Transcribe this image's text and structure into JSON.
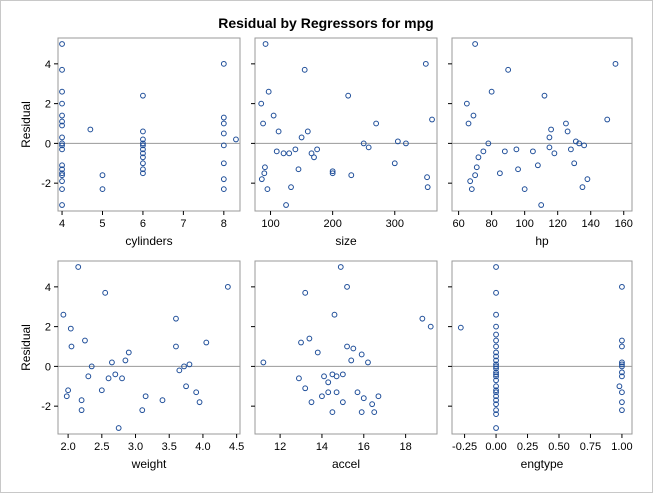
{
  "title": "Residual by Regressors for mpg",
  "colors": {
    "marker": "#1f4e99",
    "panel_border": "#9a9a9a",
    "zero_line": "#9a9a9a",
    "text": "#000000",
    "outer_border": "#c8c8c8"
  },
  "chart_data": [
    {
      "type": "scatter",
      "xlabel": "cylinders",
      "ylabel": "Residual",
      "xlim": [
        3.9,
        8.4
      ],
      "ylim": [
        -3.4,
        5.3
      ],
      "xticks": [
        4,
        5,
        6,
        7,
        8
      ],
      "xtick_labels": [
        "4",
        "5",
        "6",
        "7",
        "8"
      ],
      "yticks": [
        -2,
        0,
        2,
        4
      ],
      "ytick_labels": [
        "-2",
        "0",
        "2",
        "4"
      ],
      "reference_line_y": 0,
      "x": [
        4,
        4,
        4,
        4,
        4,
        4,
        4,
        4,
        4,
        4,
        4,
        4,
        4,
        4,
        4,
        4,
        4,
        4,
        4.7,
        5,
        5,
        6,
        6,
        6,
        6,
        6,
        6,
        6,
        6,
        6,
        6,
        6,
        8,
        8,
        8,
        8,
        8,
        8,
        8,
        8,
        8.3
      ],
      "y": [
        5.0,
        3.7,
        2.6,
        2.0,
        1.4,
        0.9,
        0.3,
        0.0,
        -0.1,
        -0.3,
        -1.1,
        -1.3,
        -1.5,
        -1.9,
        -2.3,
        -3.1,
        -1.6,
        1.1,
        0.7,
        -1.6,
        -2.3,
        2.4,
        0.6,
        0.2,
        -0.1,
        -0.3,
        -0.5,
        -0.7,
        -1.0,
        -1.3,
        -1.5,
        0.0,
        4.0,
        1.3,
        1.0,
        -0.1,
        -1.0,
        -1.8,
        -2.3,
        0.5,
        0.2
      ]
    },
    {
      "type": "scatter",
      "xlabel": "size",
      "ylabel": "",
      "xlim": [
        75,
        368
      ],
      "ylim": [
        -3.4,
        5.3
      ],
      "xticks": [
        100,
        200,
        300
      ],
      "xtick_labels": [
        "100",
        "200",
        "300"
      ],
      "yticks": [
        -2,
        0,
        2,
        4
      ],
      "ytick_labels": [],
      "reference_line_y": 0,
      "x": [
        92,
        85,
        88,
        91,
        97,
        90,
        86,
        95,
        105,
        110,
        113,
        121,
        125,
        130,
        133,
        140,
        145,
        150,
        155,
        160,
        166,
        170,
        175,
        200,
        200,
        225,
        230,
        250,
        258,
        270,
        300,
        305,
        318,
        350,
        352,
        353,
        360
      ],
      "y": [
        5.0,
        2.0,
        1.0,
        -1.2,
        2.6,
        -1.5,
        -1.8,
        -2.3,
        1.4,
        -0.4,
        0.6,
        -0.5,
        -3.1,
        -0.5,
        -2.2,
        -0.3,
        -1.3,
        0.3,
        3.7,
        0.6,
        -0.5,
        -0.7,
        -0.3,
        -1.4,
        -1.5,
        2.4,
        -1.6,
        0.0,
        -0.2,
        1.0,
        -1.0,
        0.1,
        0.0,
        4.0,
        -1.7,
        -2.2,
        1.2
      ]
    },
    {
      "type": "scatter",
      "xlabel": "hp",
      "ylabel": "",
      "xlim": [
        56,
        165
      ],
      "ylim": [
        -3.4,
        5.3
      ],
      "xticks": [
        60,
        80,
        100,
        120,
        140,
        160
      ],
      "xtick_labels": [
        "60",
        "80",
        "100",
        "120",
        "140",
        "160"
      ],
      "yticks": [
        -2,
        0,
        2,
        4
      ],
      "ytick_labels": [],
      "reference_line_y": 0,
      "x": [
        65,
        66,
        67,
        68,
        69,
        70,
        70,
        71,
        72,
        75,
        78,
        80,
        85,
        88,
        90,
        95,
        96,
        100,
        105,
        108,
        110,
        112,
        115,
        115,
        116,
        118,
        125,
        126,
        128,
        130,
        131,
        133,
        135,
        136,
        138,
        150,
        155
      ],
      "y": [
        2.0,
        1.0,
        -1.9,
        -2.3,
        1.4,
        -1.6,
        5.0,
        -1.2,
        -0.7,
        -0.4,
        0.0,
        2.6,
        -1.5,
        -0.4,
        3.7,
        -0.3,
        -1.3,
        -2.3,
        -0.4,
        -1.1,
        -3.1,
        2.4,
        -0.2,
        0.3,
        0.7,
        -0.5,
        1.0,
        0.6,
        -0.3,
        -1.0,
        0.1,
        0.0,
        -2.2,
        -0.1,
        -1.8,
        1.2,
        4.0
      ]
    },
    {
      "type": "scatter",
      "xlabel": "weight",
      "ylabel": "Residual",
      "xlim": [
        1.85,
        4.55
      ],
      "ylim": [
        -3.4,
        5.3
      ],
      "xticks": [
        2.0,
        2.5,
        3.0,
        3.5,
        4.0,
        4.5
      ],
      "xtick_labels": [
        "2.0",
        "2.5",
        "3.0",
        "3.5",
        "4.0",
        "4.5"
      ],
      "yticks": [
        -2,
        0,
        2,
        4
      ],
      "ytick_labels": [
        "-2",
        "0",
        "2",
        "4"
      ],
      "reference_line_y": 0,
      "x": [
        1.93,
        2.0,
        2.04,
        2.05,
        1.98,
        2.15,
        2.2,
        2.2,
        2.25,
        2.3,
        2.35,
        2.5,
        2.55,
        2.6,
        2.65,
        2.7,
        2.75,
        2.8,
        2.85,
        2.9,
        3.1,
        3.15,
        3.4,
        3.6,
        3.6,
        3.65,
        3.72,
        3.75,
        3.8,
        3.9,
        3.95,
        4.05,
        4.37
      ],
      "y": [
        2.6,
        -1.2,
        1.9,
        1.0,
        -1.5,
        5.0,
        -1.7,
        -2.2,
        1.3,
        -0.5,
        0.0,
        -1.2,
        3.7,
        -0.6,
        0.2,
        -0.4,
        -3.1,
        -0.6,
        0.3,
        0.7,
        -2.2,
        -1.5,
        -1.7,
        1.0,
        2.4,
        -0.2,
        0.0,
        -1.0,
        0.1,
        -1.3,
        -1.8,
        1.2,
        4.0
      ]
    },
    {
      "type": "scatter",
      "xlabel": "accel",
      "ylabel": "",
      "xlim": [
        10.8,
        19.5
      ],
      "ylim": [
        -3.4,
        5.3
      ],
      "xticks": [
        12,
        14,
        16,
        18
      ],
      "xtick_labels": [
        "12",
        "14",
        "16",
        "18"
      ],
      "yticks": [
        -2,
        0,
        2,
        4
      ],
      "ytick_labels": [],
      "reference_line_y": 0,
      "x": [
        11.2,
        12.9,
        13.0,
        13.2,
        13.2,
        13.4,
        13.5,
        13.8,
        14.0,
        14.1,
        14.3,
        14.3,
        14.5,
        14.5,
        14.6,
        14.7,
        14.7,
        14.9,
        15.0,
        15.0,
        15.2,
        15.2,
        15.4,
        15.5,
        15.7,
        15.9,
        15.9,
        16.0,
        16.2,
        16.4,
        16.5,
        16.7,
        18.8,
        19.2
      ],
      "y": [
        0.2,
        -0.6,
        1.2,
        -1.1,
        3.7,
        1.4,
        -1.8,
        0.7,
        -1.5,
        -0.5,
        -0.8,
        -1.3,
        -2.3,
        -0.4,
        2.6,
        -0.5,
        -1.3,
        5.0,
        -0.4,
        -1.8,
        4.0,
        1.0,
        0.3,
        0.9,
        -1.3,
        -2.3,
        0.6,
        -1.6,
        0.2,
        -1.9,
        -2.3,
        -1.5,
        2.4,
        2.0
      ]
    },
    {
      "type": "scatter",
      "xlabel": "engtype",
      "ylabel": "",
      "xlim": [
        -0.35,
        1.08
      ],
      "ylim": [
        -3.4,
        5.3
      ],
      "xticks": [
        -0.25,
        0.0,
        0.25,
        0.5,
        0.75,
        1.0
      ],
      "xtick_labels": [
        "-0.25",
        "0.00",
        "0.25",
        "0.50",
        "0.75",
        "1.00"
      ],
      "yticks": [
        -2,
        0,
        2,
        4
      ],
      "ytick_labels": [],
      "reference_line_y": 0,
      "x": [
        -0.28,
        0,
        0,
        0,
        0,
        0,
        0,
        0,
        0,
        0,
        0,
        0,
        0,
        0,
        0,
        0,
        0,
        0,
        0,
        0,
        0,
        0,
        0,
        0,
        0,
        0,
        0,
        0.98,
        1,
        1,
        1,
        1,
        1,
        1,
        1,
        1,
        1,
        1,
        1
      ],
      "y": [
        1.95,
        5.0,
        3.7,
        2.6,
        2.0,
        1.6,
        1.3,
        1.0,
        0.7,
        0.5,
        0.3,
        0.1,
        -0.1,
        -0.3,
        -0.5,
        -0.7,
        -1.0,
        -1.2,
        -1.5,
        -1.7,
        -1.9,
        -2.2,
        -2.4,
        -3.1,
        -0.4,
        0.0,
        -1.3,
        -1.0,
        4.0,
        1.3,
        1.0,
        0.2,
        0.0,
        -0.3,
        -0.5,
        -1.3,
        -1.8,
        -2.2,
        0.1
      ]
    }
  ]
}
